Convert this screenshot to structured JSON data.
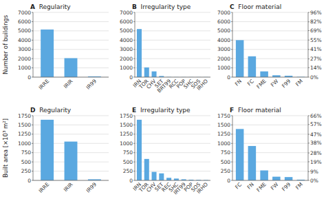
{
  "chart_data": [
    {
      "type": "bar",
      "title": "A  Regularity",
      "categories": [
        "IRRE",
        "IRIR",
        "IR99"
      ],
      "values": [
        5150,
        2050,
        80
      ],
      "color": "#5aa8e0",
      "ylim": [
        0,
        7000
      ],
      "yticks": [
        0,
        1000,
        2000,
        3000,
        4000,
        5000,
        6000,
        7000
      ],
      "ylabel": "Number of buildings",
      "grid": true
    },
    {
      "type": "bar",
      "title": "B  Irregularity type",
      "categories": [
        "IRN",
        "TOR",
        "CHV",
        "SET",
        "BRT99",
        "RCC",
        "POP",
        "SHC",
        "SOS",
        "IRHO"
      ],
      "values": [
        5200,
        1050,
        620,
        120,
        20,
        10,
        10,
        10,
        10,
        10
      ],
      "color": "#5aa8e0",
      "ylim": [
        0,
        7000
      ],
      "yticks": [
        0,
        1000,
        2000,
        3000,
        4000,
        5000,
        6000,
        7000
      ],
      "grid": true
    },
    {
      "type": "bar",
      "title": "C  Floor material",
      "categories": [
        "FN",
        "FC",
        "FME",
        "FW",
        "F99",
        "FM"
      ],
      "values": [
        4000,
        2250,
        620,
        200,
        150,
        30
      ],
      "color": "#5aa8e0",
      "ylim": [
        0,
        7000
      ],
      "yticks": [
        0,
        1000,
        2000,
        3000,
        4000,
        5000,
        6000,
        7000
      ],
      "y2lim": [
        0,
        96
      ],
      "y2ticks": [
        {
          "value": 0,
          "label": "0%"
        },
        {
          "value": 14,
          "label": "14%"
        },
        {
          "value": 27,
          "label": "27%"
        },
        {
          "value": 41,
          "label": "41%"
        },
        {
          "value": 55,
          "label": "55%"
        },
        {
          "value": 69,
          "label": "69%"
        },
        {
          "value": 82,
          "label": "82%"
        },
        {
          "value": 96,
          "label": "96%"
        }
      ],
      "grid": true
    },
    {
      "type": "bar",
      "title": "D  Regularity",
      "categories": [
        "IRRE",
        "IRIR",
        "IR99"
      ],
      "values": [
        1640,
        1050,
        30
      ],
      "color": "#5aa8e0",
      "ylim": [
        0,
        1750
      ],
      "yticks": [
        0,
        250,
        500,
        750,
        1000,
        1250,
        1500,
        1750
      ],
      "ylabel": "Built area [×10³ m²]",
      "grid": true
    },
    {
      "type": "bar",
      "title": "E  Irregularity type",
      "categories": [
        "IRN",
        "TOR",
        "CHV",
        "SET",
        "REC",
        "SHC",
        "IRT99",
        "POP",
        "SOS",
        "IRHO"
      ],
      "values": [
        1640,
        580,
        230,
        190,
        70,
        50,
        30,
        20,
        15,
        10
      ],
      "color": "#5aa8e0",
      "ylim": [
        0,
        1750
      ],
      "yticks": [
        0,
        250,
        500,
        750,
        1000,
        1250,
        1500,
        1750
      ],
      "grid": true
    },
    {
      "type": "bar",
      "title": "F  Floor material",
      "categories": [
        "FC",
        "FN",
        "FME",
        "FW",
        "F99",
        "FM"
      ],
      "values": [
        1390,
        930,
        270,
        100,
        90,
        20
      ],
      "color": "#5aa8e0",
      "ylim": [
        0,
        1750
      ],
      "yticks": [
        0,
        250,
        500,
        750,
        1000,
        1250,
        1500,
        1750
      ],
      "y2lim": [
        0,
        66
      ],
      "y2ticks": [
        {
          "value": 0,
          "label": "0%"
        },
        {
          "value": 9,
          "label": "9%"
        },
        {
          "value": 19,
          "label": "19%"
        },
        {
          "value": 28,
          "label": "28%"
        },
        {
          "value": 38,
          "label": "38%"
        },
        {
          "value": 47,
          "label": "47%"
        },
        {
          "value": 57,
          "label": "57%"
        },
        {
          "value": 66,
          "label": "66%"
        }
      ],
      "grid": true
    }
  ]
}
